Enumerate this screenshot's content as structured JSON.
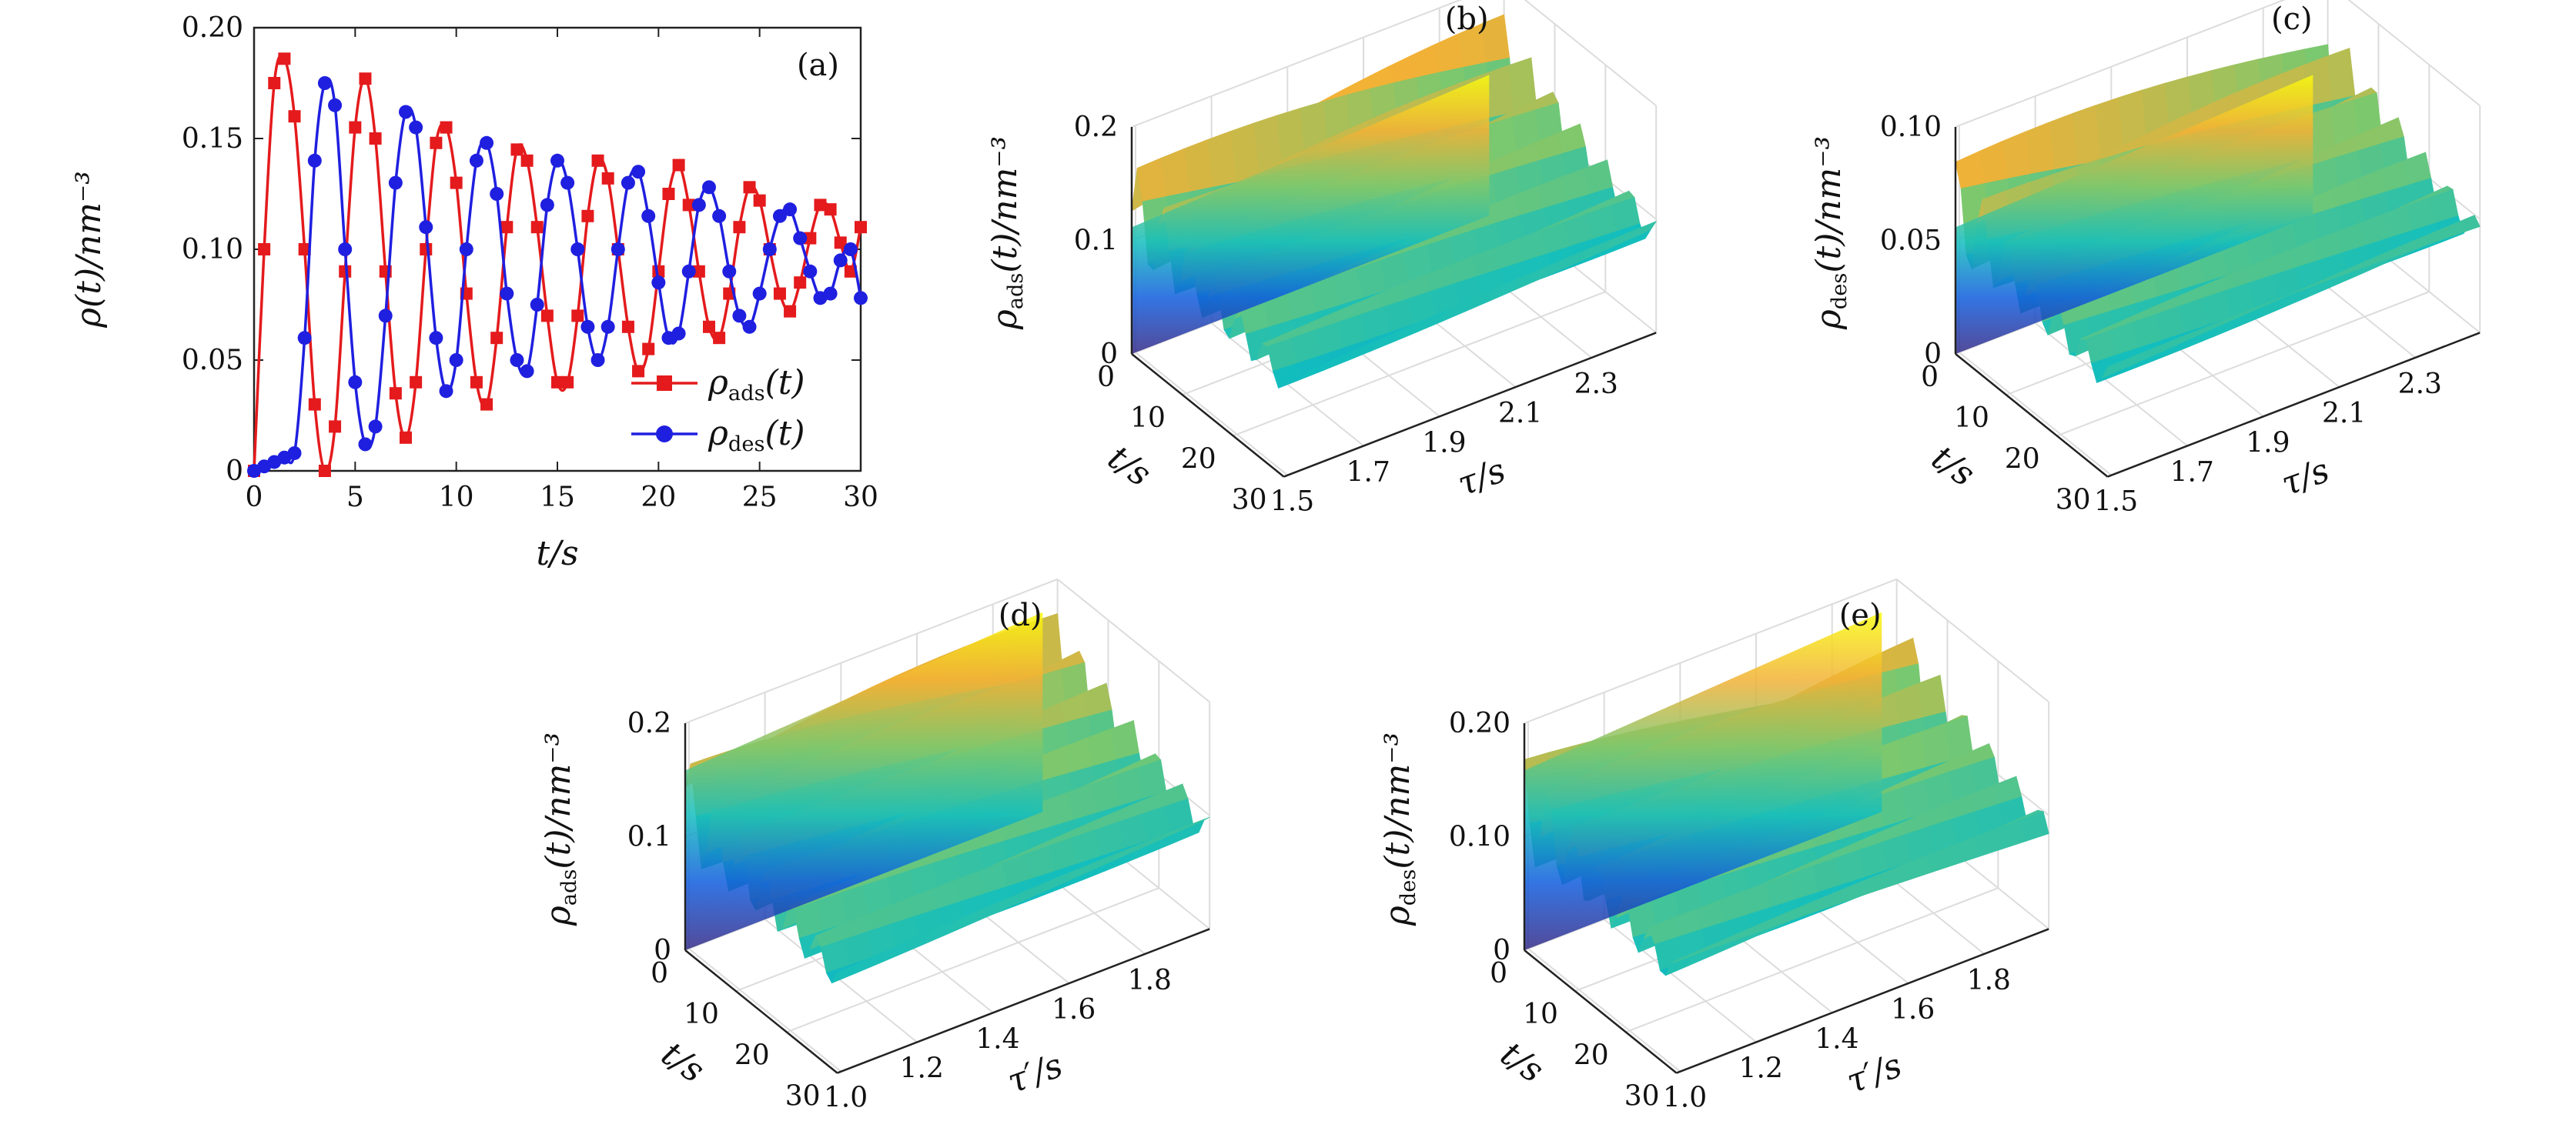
{
  "chart_data": [
    {
      "id": "a",
      "panel_label": "(a)",
      "type": "line",
      "xlabel": "t/s",
      "ylabel": "ρ(t)/nm⁻³",
      "xlim": [
        0,
        30
      ],
      "ylim": [
        0,
        0.2
      ],
      "x_ticks": [
        "0",
        "5",
        "10",
        "15",
        "20",
        "25",
        "30"
      ],
      "y_ticks": [
        "0",
        "0.05",
        "0.10",
        "0.15",
        "0.20"
      ],
      "legend": "bottom-right",
      "grid": false,
      "series": [
        {
          "name": "ρads(t)",
          "color": "#e41a1c",
          "marker": "square",
          "x": [
            0.0,
            0.5,
            1.0,
            1.5,
            2.0,
            2.5,
            3.0,
            3.5,
            4.0,
            4.5,
            5.0,
            5.5,
            6.0,
            6.5,
            7.0,
            7.5,
            8.0,
            8.5,
            9.0,
            9.5,
            10.0,
            10.5,
            11.0,
            11.5,
            12.0,
            12.5,
            13.0,
            13.5,
            14.0,
            14.5,
            15.0,
            15.5,
            16.0,
            16.5,
            17.0,
            17.5,
            18.0,
            18.5,
            19.0,
            19.5,
            20.0,
            20.5,
            21.0,
            21.5,
            22.0,
            22.5,
            23.0,
            23.5,
            24.0,
            24.5,
            25.0,
            25.5,
            26.0,
            26.5,
            27.0,
            27.5,
            28.0,
            28.5,
            29.0,
            29.5,
            30.0
          ],
          "values": [
            0.0,
            0.1,
            0.175,
            0.186,
            0.16,
            0.1,
            0.03,
            0.0,
            0.02,
            0.09,
            0.155,
            0.177,
            0.15,
            0.09,
            0.035,
            0.015,
            0.04,
            0.1,
            0.148,
            0.155,
            0.13,
            0.08,
            0.04,
            0.03,
            0.06,
            0.11,
            0.145,
            0.14,
            0.11,
            0.07,
            0.04,
            0.04,
            0.07,
            0.115,
            0.14,
            0.132,
            0.1,
            0.065,
            0.045,
            0.055,
            0.09,
            0.125,
            0.138,
            0.12,
            0.09,
            0.065,
            0.06,
            0.08,
            0.11,
            0.128,
            0.122,
            0.1,
            0.08,
            0.072,
            0.085,
            0.105,
            0.12,
            0.118,
            0.103,
            0.09,
            0.11
          ]
        },
        {
          "name": "ρdes(t)",
          "color": "#1f1fe0",
          "marker": "circle",
          "x": [
            0.0,
            0.5,
            1.0,
            1.5,
            2.0,
            2.5,
            3.0,
            3.5,
            4.0,
            4.5,
            5.0,
            5.5,
            6.0,
            6.5,
            7.0,
            7.5,
            8.0,
            8.5,
            9.0,
            9.5,
            10.0,
            10.5,
            11.0,
            11.5,
            12.0,
            12.5,
            13.0,
            13.5,
            14.0,
            14.5,
            15.0,
            15.5,
            16.0,
            16.5,
            17.0,
            17.5,
            18.0,
            18.5,
            19.0,
            19.5,
            20.0,
            20.5,
            21.0,
            21.5,
            22.0,
            22.5,
            23.0,
            23.5,
            24.0,
            24.5,
            25.0,
            25.5,
            26.0,
            26.5,
            27.0,
            27.5,
            28.0,
            28.5,
            29.0,
            29.5,
            30.0
          ],
          "values": [
            0.0,
            0.002,
            0.004,
            0.006,
            0.008,
            0.06,
            0.14,
            0.175,
            0.165,
            0.1,
            0.04,
            0.012,
            0.02,
            0.07,
            0.13,
            0.162,
            0.155,
            0.11,
            0.06,
            0.036,
            0.05,
            0.1,
            0.14,
            0.148,
            0.125,
            0.08,
            0.05,
            0.045,
            0.075,
            0.12,
            0.14,
            0.13,
            0.1,
            0.065,
            0.05,
            0.065,
            0.1,
            0.13,
            0.135,
            0.115,
            0.085,
            0.06,
            0.062,
            0.09,
            0.12,
            0.128,
            0.115,
            0.09,
            0.07,
            0.065,
            0.08,
            0.1,
            0.115,
            0.118,
            0.105,
            0.09,
            0.078,
            0.08,
            0.095,
            0.1,
            0.078
          ]
        }
      ]
    },
    {
      "id": "b",
      "panel_label": "(b)",
      "type": "surface",
      "zlabel": "ρads(t)/nm⁻³",
      "xlabel": "t/s",
      "ylabel": "τ/s",
      "t_range": [
        0,
        30
      ],
      "tau_range": [
        1.5,
        2.4
      ],
      "z_range": [
        0,
        0.2
      ],
      "z_ticks": [
        "0",
        "0.1",
        "0.2"
      ],
      "t_ticks": [
        "0",
        "10",
        "20",
        "30"
      ],
      "tau_ticks": [
        "1.5",
        "1.7",
        "1.9",
        "2.1",
        "2.3"
      ],
      "n_ripples": 8,
      "front_wall": "low",
      "phase": 0.0
    },
    {
      "id": "c",
      "panel_label": "(c)",
      "type": "surface",
      "zlabel": "ρdes(t)/nm⁻³",
      "xlabel": "t/s",
      "ylabel": "τ/s",
      "t_range": [
        0,
        30
      ],
      "tau_range": [
        1.5,
        2.4
      ],
      "z_range": [
        0,
        0.12
      ],
      "z_ticks": [
        "0",
        "0.05",
        "0.10"
      ],
      "t_ticks": [
        "0",
        "10",
        "20",
        "30"
      ],
      "tau_ticks": [
        "1.5",
        "1.7",
        "1.9",
        "2.1",
        "2.3"
      ],
      "n_ripples": 9,
      "front_wall": "low",
      "phase": 1.2
    },
    {
      "id": "d",
      "panel_label": "(d)",
      "type": "surface",
      "zlabel": "ρads(t)/nm⁻³",
      "xlabel": "t/s",
      "ylabel": "τ′/s",
      "t_range": [
        0,
        30
      ],
      "tau_range": [
        1.0,
        1.9
      ],
      "z_range": [
        0,
        0.2
      ],
      "z_ticks": [
        "0",
        "0.1",
        "0.2"
      ],
      "t_ticks": [
        "0",
        "10",
        "20",
        "30"
      ],
      "tau_ticks": [
        "1.0",
        "1.2",
        "1.4",
        "1.6",
        "1.8"
      ],
      "n_ripples": 9,
      "front_wall": "high",
      "phase": 0.4
    },
    {
      "id": "e",
      "panel_label": "(e)",
      "type": "surface",
      "zlabel": "ρdes(t)/nm⁻³",
      "xlabel": "t/s",
      "ylabel": "τ′/s",
      "t_range": [
        0,
        30
      ],
      "tau_range": [
        1.0,
        1.9
      ],
      "z_range": [
        0,
        0.2
      ],
      "z_ticks": [
        "0",
        "0.10",
        "0.20"
      ],
      "t_ticks": [
        "0",
        "10",
        "20",
        "30"
      ],
      "tau_ticks": [
        "1.0",
        "1.2",
        "1.4",
        "1.6",
        "1.8"
      ],
      "n_ripples": 9,
      "front_wall": "high",
      "phase": 2.0
    }
  ]
}
